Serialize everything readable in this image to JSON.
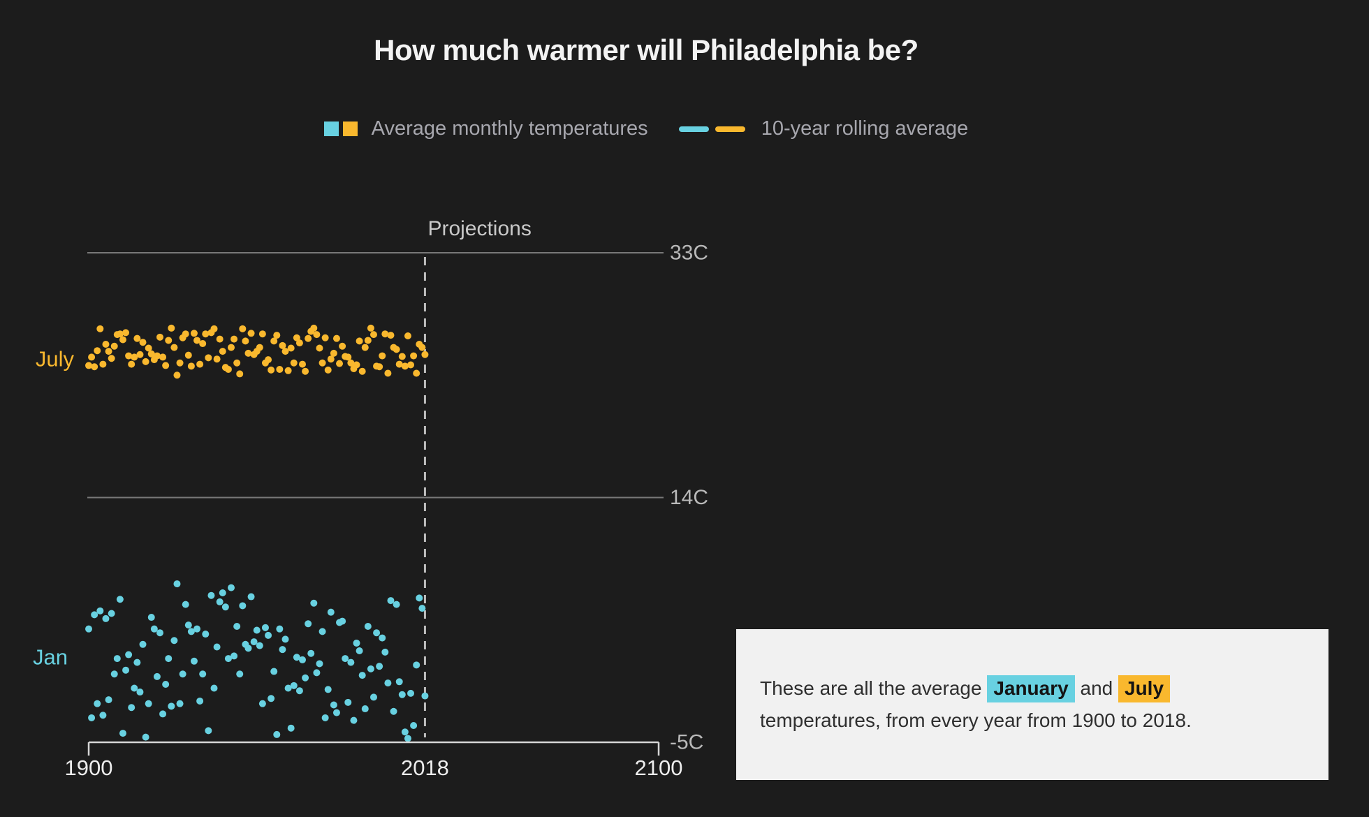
{
  "title": "How much warmer will Philadelphia be?",
  "legend": {
    "monthly_label": "Average monthly temperatures",
    "rolling_label": "10-year rolling average"
  },
  "colors": {
    "background": "#1c1c1c",
    "jan": "#68d1e1",
    "july": "#f9b82e",
    "gridline": "#787878",
    "axis": "#d6d6d6",
    "divider": "#bdbdbd",
    "year_tick_text": "#ededed",
    "temp_label_text": "#b9b9b9",
    "projections_text": "#c9c9c9",
    "note_background": "#f1f1f1",
    "note_text": "#2f2f2f"
  },
  "note": {
    "segments": [
      {
        "t": "These are all the average "
      },
      {
        "t": "January",
        "h": "jan"
      },
      {
        "t": " and "
      },
      {
        "t": "July",
        "h": "july"
      },
      {
        "br": true
      },
      {
        "t": "temperatures, from every year from 1900 to 2018."
      }
    ]
  },
  "chart_data": {
    "type": "scatter",
    "title": "How much warmer will Philadelphia be?",
    "xlabel": "",
    "ylabel": "",
    "xlim": [
      1900,
      2100
    ],
    "ylim": [
      -5,
      33
    ],
    "grid": "horizontal-only",
    "legend_position": "top-center",
    "axes": {
      "x": {
        "ticks": [
          {
            "value": 1900,
            "label": "1900"
          },
          {
            "value": 2018,
            "label": "2018"
          },
          {
            "value": 2100,
            "label": "2100"
          }
        ]
      },
      "y": {
        "unit": "C",
        "gridlines": [
          {
            "value": 33,
            "label": "33C"
          },
          {
            "value": 14,
            "label": "14C"
          }
        ],
        "baseline": {
          "value": -5,
          "label": "-5C"
        }
      },
      "divider": {
        "x_value": 2018,
        "label": "Projections"
      }
    },
    "start_year": 1900,
    "end_year": 2018,
    "series": [
      {
        "name": "July",
        "color": "#f9b82e",
        "values": [
          24.25,
          24.9,
          24.15,
          25.4,
          27.1,
          24.35,
          25.9,
          25.35,
          24.8,
          25.75,
          26.65,
          26.7,
          26.25,
          26.8,
          25.0,
          24.35,
          24.9,
          26.35,
          25.1,
          26.05,
          24.55,
          25.6,
          25.15,
          24.7,
          25.0,
          26.45,
          24.9,
          24.25,
          26.2,
          27.15,
          25.65,
          23.5,
          24.45,
          26.4,
          26.7,
          25.05,
          24.2,
          26.75,
          26.2,
          24.35,
          25.95,
          26.7,
          24.85,
          26.8,
          27.1,
          24.75,
          26.3,
          25.35,
          24.1,
          23.95,
          25.65,
          26.3,
          24.45,
          23.6,
          27.1,
          26.15,
          25.2,
          26.75,
          25.1,
          25.35,
          25.65,
          26.7,
          24.45,
          24.7,
          23.9,
          26.15,
          26.6,
          23.95,
          25.8,
          25.35,
          23.85,
          25.6,
          24.45,
          26.4,
          26.0,
          24.35,
          23.8,
          26.35,
          26.9,
          27.15,
          26.65,
          25.6,
          24.45,
          26.4,
          23.9,
          24.75,
          25.2,
          26.35,
          24.4,
          25.75,
          24.95,
          24.9,
          24.45,
          24.0,
          24.3,
          26.15,
          23.8,
          25.65,
          26.2,
          27.15,
          26.65,
          24.2,
          24.15,
          25.0,
          26.7,
          23.65,
          26.6,
          25.65,
          25.5,
          24.35,
          24.95,
          24.2,
          26.55,
          24.3,
          25.0,
          23.65,
          25.9,
          25.65,
          25.1
        ]
      },
      {
        "name": "Jan",
        "color": "#68d1e1",
        "values": [
          3.8,
          -3.1,
          4.9,
          -2.0,
          5.2,
          -2.9,
          4.6,
          -1.7,
          5.0,
          0.3,
          1.5,
          6.1,
          -4.3,
          0.6,
          1.8,
          -2.3,
          -0.8,
          1.2,
          -1.1,
          2.6,
          -4.6,
          -2.0,
          4.7,
          3.8,
          0.1,
          3.5,
          -2.8,
          -0.5,
          1.5,
          -2.2,
          2.9,
          7.3,
          -2.0,
          0.3,
          5.7,
          4.1,
          3.6,
          1.3,
          3.8,
          -1.8,
          0.3,
          3.4,
          -4.1,
          6.4,
          -0.8,
          2.4,
          5.9,
          6.6,
          5.5,
          1.5,
          7.0,
          1.7,
          4.0,
          0.3,
          5.6,
          2.6,
          2.3,
          6.3,
          2.8,
          3.7,
          2.5,
          -2.0,
          3.9,
          3.3,
          -1.6,
          0.5,
          -4.4,
          3.8,
          2.2,
          3.0,
          -0.8,
          -3.9,
          -0.6,
          1.6,
          -1.0,
          1.4,
          0.0,
          4.2,
          1.9,
          5.8,
          0.4,
          1.1,
          3.6,
          -3.1,
          -0.9,
          5.1,
          -2.1,
          -2.7,
          4.3,
          4.4,
          1.5,
          -1.9,
          1.2,
          -3.3,
          2.7,
          2.1,
          0.2,
          -2.4,
          4.0,
          0.7,
          -1.5,
          3.5,
          0.9,
          3.1,
          2.0,
          -0.4,
          6.0,
          -2.6,
          5.7,
          -0.3,
          -1.3,
          -4.2,
          -4.7,
          -1.2,
          -3.7,
          1.0,
          6.2,
          5.4,
          -1.4
        ]
      }
    ]
  }
}
